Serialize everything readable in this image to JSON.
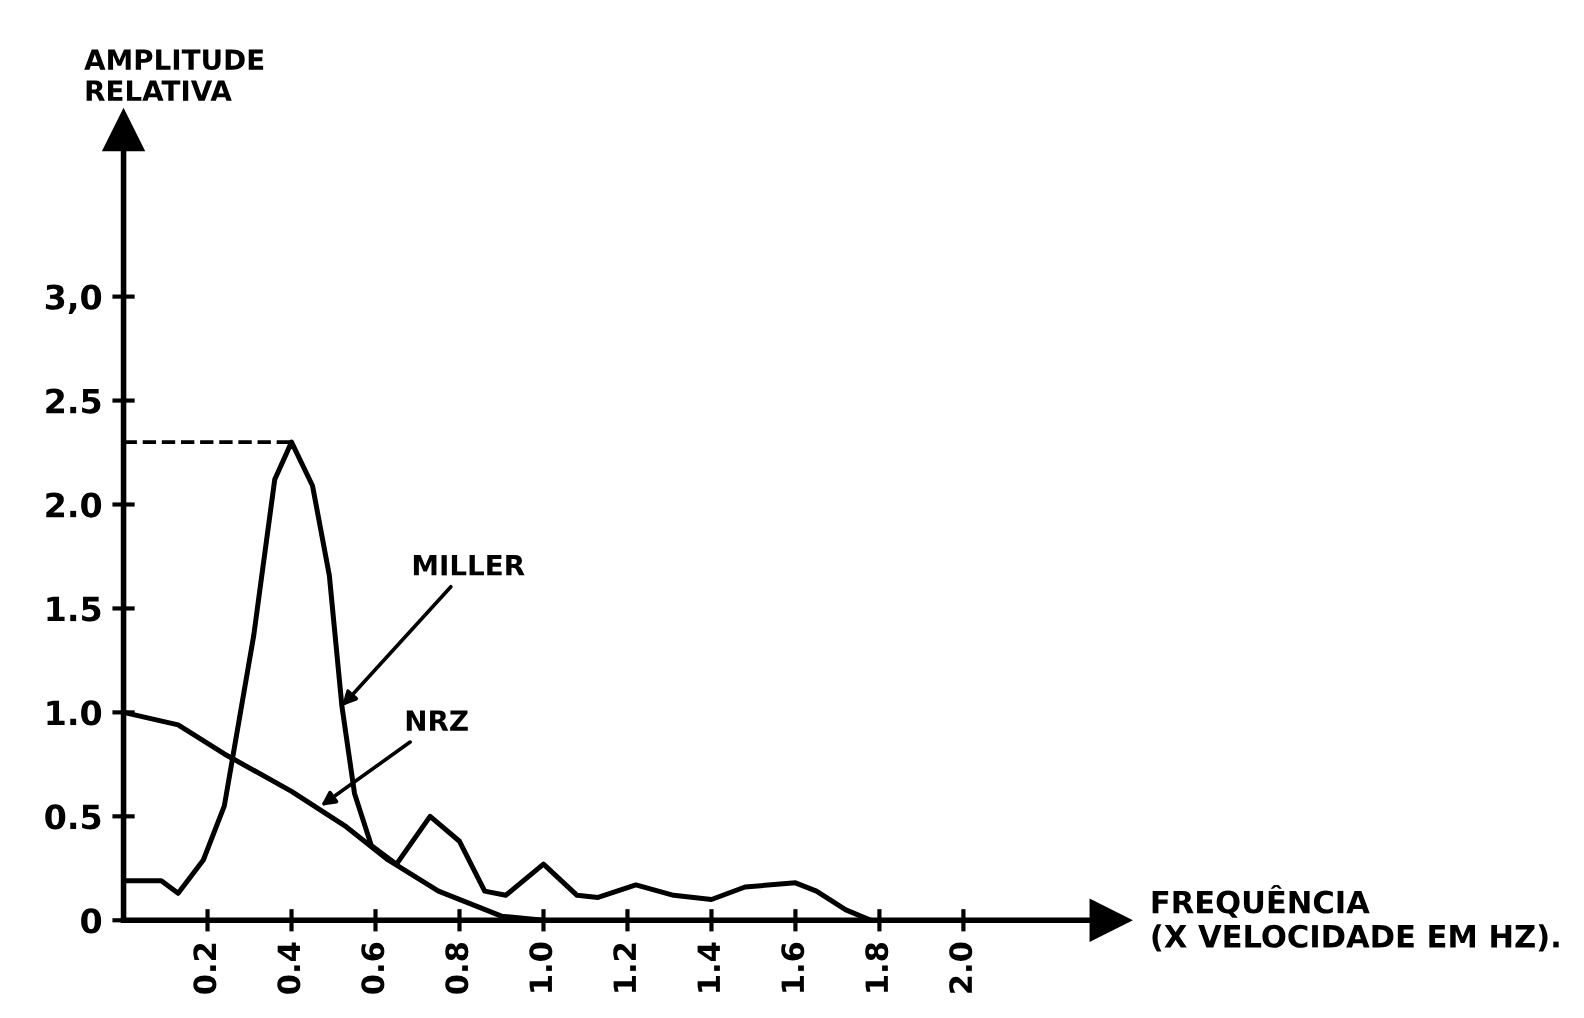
{
  "chart_data": {
    "type": "line",
    "xlabel": "FREQUÊNCIA\n(X VELOCIDADE EM HZ).",
    "ylabel": "AMPLITUDE\nRELATIVA",
    "xlim": [
      0,
      2.35
    ],
    "ylim": [
      0,
      3.8
    ],
    "xticks": [
      0.2,
      0.4,
      0.6,
      0.8,
      {
        "value": 1,
        "label": "1.0"
      },
      1.2,
      1.4,
      1.6,
      1.8,
      {
        "value": 2,
        "label": "2.0"
      }
    ],
    "yticks": [
      {
        "value": 0,
        "label": "0"
      },
      0.5,
      {
        "value": 1,
        "label": "1.0"
      },
      1.5,
      {
        "value": 2,
        "label": "2.0"
      },
      2.5,
      {
        "value": 3,
        "label": "3,0"
      }
    ],
    "grid": false,
    "marker": "none",
    "line_style": "solid",
    "series": [
      {
        "color": "#000000",
        "x": [
          0,
          0.09,
          0.13,
          0.19,
          0.24,
          0.31,
          0.36,
          0.4,
          0.45,
          0.49,
          0.52,
          0.55,
          0.59,
          0.65,
          0.73,
          0.8,
          0.86,
          0.91,
          1.0,
          1.08,
          1.13,
          1.22,
          1.31,
          1.4,
          1.48,
          1.6,
          1.65,
          1.72,
          1.78
        ],
        "values": [
          0.19,
          0.19,
          0.13,
          0.29,
          0.55,
          1.37,
          2.12,
          2.3,
          2.09,
          1.66,
          1.03,
          0.61,
          0.36,
          0.27,
          0.5,
          0.38,
          0.14,
          0.12,
          0.27,
          0.12,
          0.11,
          0.17,
          0.12,
          0.1,
          0.16,
          0.18,
          0.14,
          0.05,
          0
        ]
      },
      {
        "color": "#000000",
        "x": [
          0,
          0.13,
          0.24,
          0.4,
          0.53,
          0.63,
          0.75,
          0.9,
          1.0
        ],
        "values": [
          1.0,
          0.94,
          0.8,
          0.62,
          0.45,
          0.29,
          0.14,
          0.02,
          0
        ]
      }
    ],
    "ref_lines": [
      {
        "axis": "y",
        "value": 2.3,
        "line_style": "dashed",
        "color": "#000000"
      }
    ],
    "annotations": [
      {
        "text": "MILLER",
        "x": 0.52,
        "y": 1.03
      },
      {
        "text": "NRZ",
        "x": 0.47,
        "y": 0.55
      }
    ]
  }
}
